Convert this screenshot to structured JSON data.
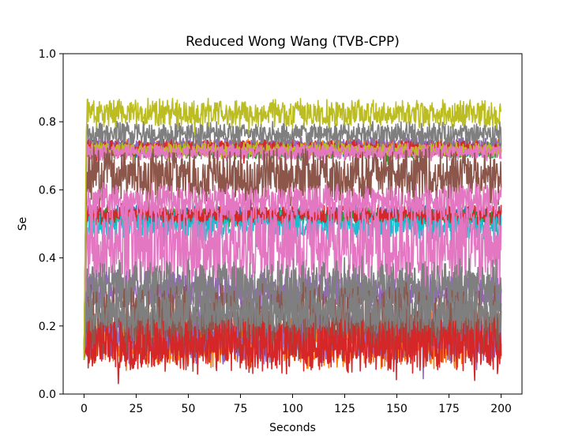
{
  "chart_data": {
    "type": "line",
    "title": "Reduced Wong Wang (TVB-CPP)",
    "xlabel": "Seconds",
    "ylabel": "Se",
    "xlim": [
      -10,
      210
    ],
    "ylim": [
      0.0,
      1.0
    ],
    "xticks": [
      0,
      25,
      50,
      75,
      100,
      125,
      150,
      175,
      200
    ],
    "yticks": [
      0.0,
      0.2,
      0.4,
      0.6,
      0.8,
      1.0
    ],
    "xtick_labels": [
      "0",
      "25",
      "50",
      "75",
      "100",
      "125",
      "150",
      "175",
      "200"
    ],
    "ytick_labels": [
      "0.0",
      "0.2",
      "0.4",
      "0.6",
      "0.8",
      "1.0"
    ],
    "grid": false,
    "legend": "none",
    "x_start": 0,
    "x_end": 200,
    "series": [
      {
        "color": "#1f77b4",
        "start": 0.1,
        "mean": 0.72,
        "amp": 0.02
      },
      {
        "color": "#ff7f0e",
        "start": 0.1,
        "mean": 0.725,
        "amp": 0.02
      },
      {
        "color": "#2ca02c",
        "start": 0.1,
        "mean": 0.715,
        "amp": 0.02
      },
      {
        "color": "#9467bd",
        "start": 0.1,
        "mean": 0.73,
        "amp": 0.02
      },
      {
        "color": "#d62728",
        "start": 0.1,
        "mean": 0.722,
        "amp": 0.022
      },
      {
        "color": "#bcbd22",
        "start": 0.1,
        "mean": 0.718,
        "amp": 0.018
      },
      {
        "color": "#e377c2",
        "start": 0.1,
        "mean": 0.71,
        "amp": 0.02
      },
      {
        "color": "#8c564b",
        "start": 0.1,
        "mean": 0.64,
        "amp": 0.07
      },
      {
        "color": "#1f77b4",
        "start": 0.1,
        "mean": 0.525,
        "amp": 0.025
      },
      {
        "color": "#2ca02c",
        "start": 0.1,
        "mean": 0.52,
        "amp": 0.022
      },
      {
        "color": "#17becf",
        "start": 0.1,
        "mean": 0.5,
        "amp": 0.04
      },
      {
        "color": "#d62728",
        "start": 0.1,
        "mean": 0.528,
        "amp": 0.025
      },
      {
        "color": "#e377c2",
        "start": 0.1,
        "mean": 0.565,
        "amp": 0.045
      },
      {
        "color": "#e377c2",
        "start": 0.1,
        "mean": 0.43,
        "amp": 0.11
      },
      {
        "color": "#9467bd",
        "start": 0.1,
        "mean": 0.3,
        "amp": 0.05
      },
      {
        "color": "#7f7f7f",
        "start": 0.1,
        "mean": 0.315,
        "amp": 0.07
      },
      {
        "color": "#ff7f0e",
        "start": 0.1,
        "mean": 0.16,
        "amp": 0.07
      },
      {
        "color": "#9467bd",
        "start": 0.1,
        "mean": 0.175,
        "amp": 0.07
      },
      {
        "color": "#8c564b",
        "start": 0.1,
        "mean": 0.215,
        "amp": 0.09
      },
      {
        "color": "#7f7f7f",
        "start": 0.1,
        "mean": 0.24,
        "amp": 0.06
      },
      {
        "color": "#d62728",
        "start": 0.1,
        "mean": 0.14,
        "amp": 0.065
      },
      {
        "color": "#7f7f7f",
        "start": 0.1,
        "mean": 0.765,
        "amp": 0.03
      },
      {
        "color": "#bcbd22",
        "start": 0.1,
        "mean": 0.825,
        "amp": 0.035
      }
    ]
  }
}
